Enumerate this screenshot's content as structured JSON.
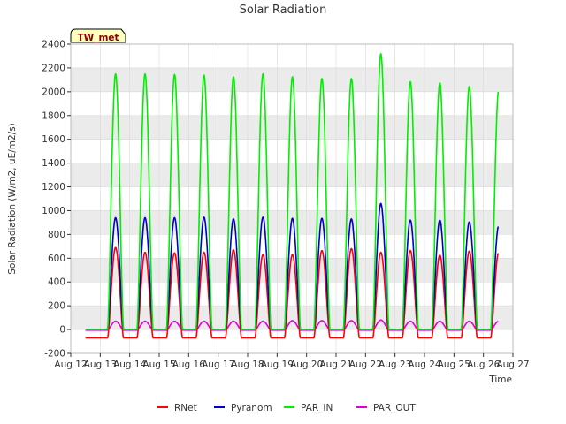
{
  "chart_data": {
    "type": "line",
    "title": "Solar Radiation",
    "xlabel": "Time",
    "ylabel": "Solar Radiation (W/m2, uE/m2/s)",
    "tag": "TW_met",
    "ylim": [
      -200,
      2400
    ],
    "xlim": [
      12,
      27
    ],
    "y_ticks": [
      -200,
      0,
      200,
      400,
      600,
      800,
      1000,
      1200,
      1400,
      1600,
      1800,
      2000,
      2200,
      2400
    ],
    "x_ticks": [
      {
        "day": 12,
        "label": "Aug 12"
      },
      {
        "day": 13,
        "label": "Aug 13"
      },
      {
        "day": 14,
        "label": "Aug 14"
      },
      {
        "day": 15,
        "label": "Aug 15"
      },
      {
        "day": 16,
        "label": "Aug 16"
      },
      {
        "day": 17,
        "label": "Aug 17"
      },
      {
        "day": 18,
        "label": "Aug 18"
      },
      {
        "day": 19,
        "label": "Aug 19"
      },
      {
        "day": 20,
        "label": "Aug 20"
      },
      {
        "day": 21,
        "label": "Aug 21"
      },
      {
        "day": 22,
        "label": "Aug 22"
      },
      {
        "day": 23,
        "label": "Aug 23"
      },
      {
        "day": 24,
        "label": "Aug 24"
      },
      {
        "day": 25,
        "label": "Aug 25"
      },
      {
        "day": 26,
        "label": "Aug 26"
      },
      {
        "day": 27,
        "label": "Aug 27"
      }
    ],
    "grid": "horizontal bands",
    "legend_position": "bottom",
    "data_start_day": 12.5,
    "data_end_day": 26.5,
    "daylight_window": [
      0.25,
      0.79
    ],
    "series": [
      {
        "name": "RNet",
        "color": "#ff0000",
        "night_value": -70,
        "daily_peaks": [
          690,
          650,
          645,
          650,
          670,
          630,
          630,
          665,
          680,
          650,
          665,
          625,
          660,
          650
        ]
      },
      {
        "name": "Pyranom",
        "color": "#0000cc",
        "night_value": 0,
        "daily_peaks": [
          940,
          940,
          940,
          945,
          930,
          945,
          935,
          935,
          930,
          1060,
          920,
          920,
          905,
          875
        ]
      },
      {
        "name": "PAR_IN",
        "color": "#00ee00",
        "night_value": 0,
        "daily_peaks": [
          2150,
          2150,
          2145,
          2140,
          2125,
          2150,
          2125,
          2110,
          2110,
          2320,
          2085,
          2075,
          2045,
          2020
        ]
      },
      {
        "name": "PAR_OUT",
        "color": "#dd00dd",
        "night_value": -5,
        "daily_peaks": [
          70,
          70,
          70,
          70,
          70,
          70,
          75,
          75,
          75,
          80,
          70,
          70,
          70,
          70
        ]
      }
    ],
    "colors": {
      "background": "#ffffff",
      "band": "#ebebeb",
      "grid": "#d9d9d9",
      "tag_fill": "#ffffc0"
    }
  }
}
